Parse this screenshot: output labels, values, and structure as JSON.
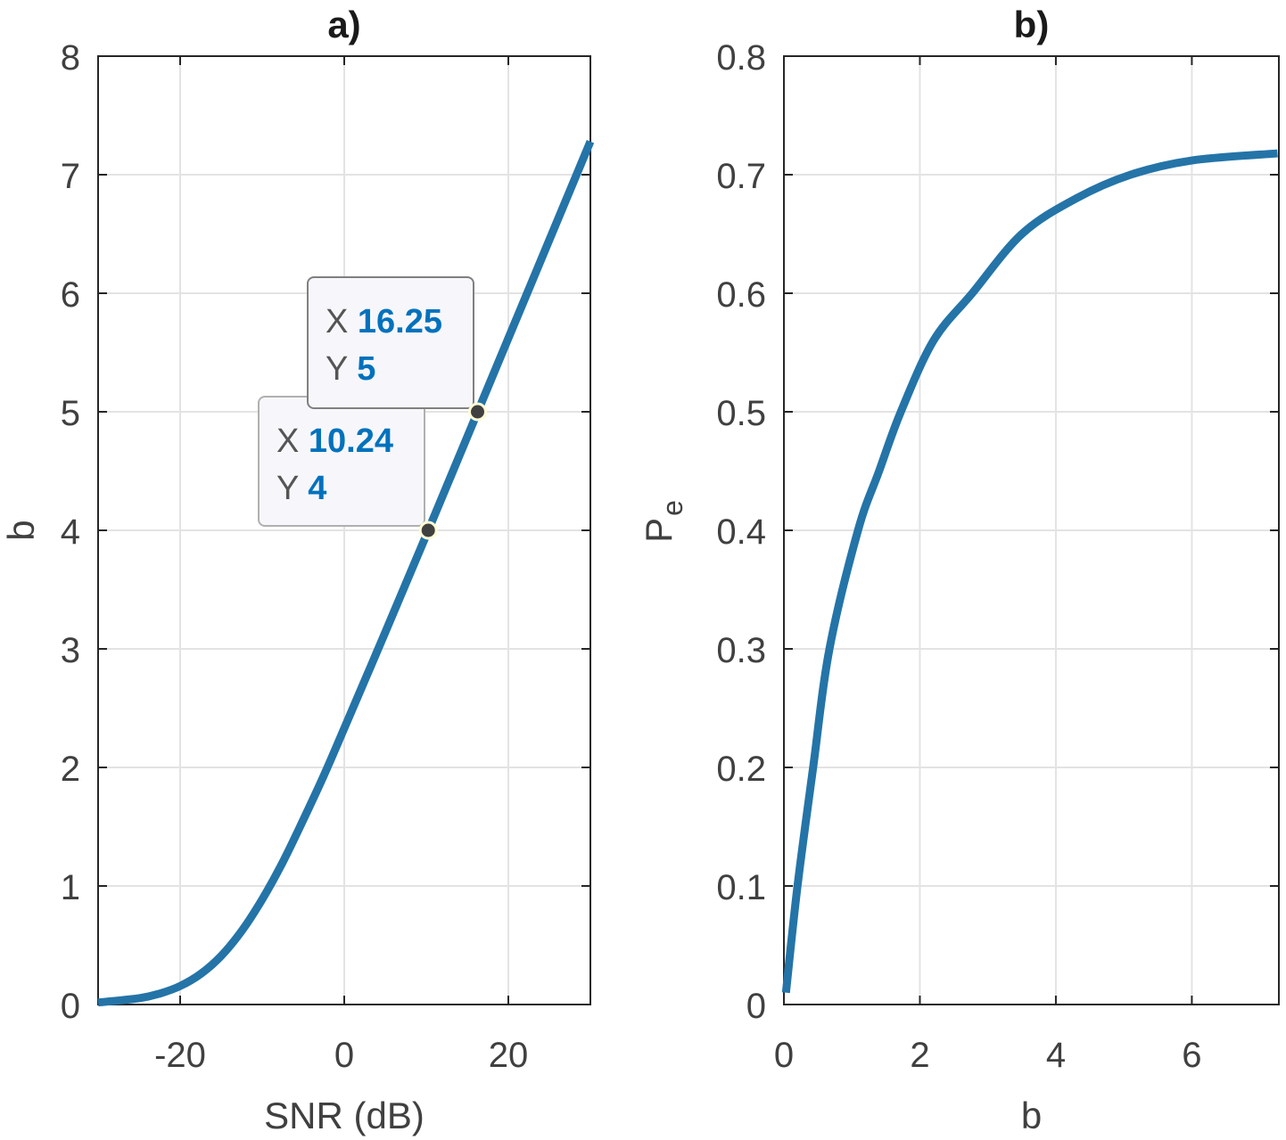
{
  "chart_data": [
    {
      "type": "line",
      "title": "a)",
      "xlabel": "SNR (dB)",
      "ylabel": "b",
      "xlim": [
        -30,
        30
      ],
      "ylim": [
        0,
        8
      ],
      "xticks": [
        -20,
        0,
        20
      ],
      "yticks": [
        0,
        1,
        2,
        3,
        4,
        5,
        6,
        7,
        8
      ],
      "grid": true,
      "color": "#2474a8",
      "x": [
        -30,
        -25,
        -22.5,
        -20,
        -17.5,
        -15,
        -12.5,
        -10,
        -7.5,
        -5,
        -2.5,
        0,
        5,
        10,
        15,
        20,
        25,
        30
      ],
      "y": [
        0.017,
        0.053,
        0.092,
        0.156,
        0.258,
        0.41,
        0.62,
        0.887,
        1.2,
        1.557,
        1.93,
        2.33,
        3.14,
        3.96,
        4.79,
        5.62,
        6.45,
        7.28
      ],
      "datatips": [
        {
          "x_label": "X",
          "x_value": "16.25",
          "y_label": "Y",
          "y_value": "5",
          "x": 16.25,
          "y": 5
        },
        {
          "x_label": "X",
          "x_value": "10.24",
          "y_label": "Y",
          "y_value": "4",
          "x": 10.24,
          "y": 4
        }
      ]
    },
    {
      "type": "line",
      "title": "b)",
      "xlabel": "b",
      "ylabel": "P",
      "ylabel_sub": "e",
      "xlim": [
        0,
        7.28
      ],
      "ylim": [
        0,
        0.8
      ],
      "xticks": [
        0,
        2,
        4,
        6
      ],
      "yticks": [
        0,
        0.1,
        0.2,
        0.3,
        0.4,
        0.5,
        0.6,
        0.7,
        0.8
      ],
      "grid": true,
      "color": "#2474a8",
      "x": [
        0.03,
        0.2,
        0.43,
        0.67,
        1.09,
        1.4,
        1.72,
        2.2,
        2.77,
        3.5,
        4.3,
        5.1,
        6.0,
        7.26
      ],
      "y": [
        0.01,
        0.1,
        0.2,
        0.3,
        0.4,
        0.45,
        0.5,
        0.56,
        0.6,
        0.65,
        0.68,
        0.7,
        0.712,
        0.718
      ]
    }
  ]
}
